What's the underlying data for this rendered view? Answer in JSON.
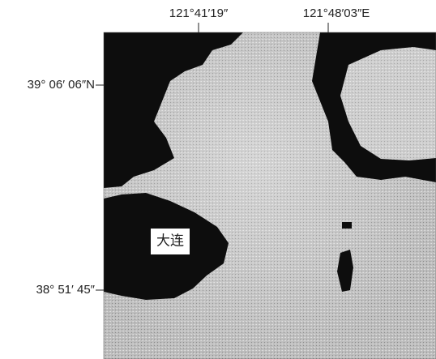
{
  "labels": {
    "top": [
      "121°41′19″",
      "121°48′03″E"
    ],
    "left": [
      "39° 06′ 06″N",
      "38° 51′ 45″"
    ]
  },
  "place": "大连"
}
